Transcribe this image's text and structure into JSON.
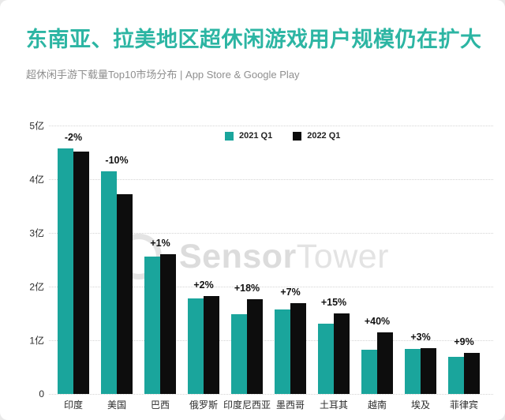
{
  "header": {
    "title": "东南亚、拉美地区超休闲游戏用户规模仍在扩大",
    "subtitle": "超休闲手游下载量Top10市场分布 | App Store & Google Play"
  },
  "watermark": {
    "name": "SensorTower logo watermark",
    "bold_part": "Sensor",
    "light_part": "Tower"
  },
  "colors": {
    "title_teal": "#2cb5a3",
    "bar_teal": "#1aa59c",
    "bar_black": "#0d0d0d",
    "grid_gray": "#d4d4d4",
    "subtitle_gray": "#8f8f8f"
  },
  "chart_data": {
    "type": "bar",
    "title": "超休闲手游下载量Top10市场分布 | App Store & Google Play",
    "unit": "亿 (hundred million downloads)",
    "categories": [
      "印度",
      "美国",
      "巴西",
      "俄罗斯",
      "印度尼西亚",
      "墨西哥",
      "土耳其",
      "越南",
      "埃及",
      "菲律宾"
    ],
    "series": [
      {
        "name": "2021 Q1",
        "color": "#1aa59c",
        "values": [
          4.57,
          4.15,
          2.56,
          1.78,
          1.49,
          1.57,
          1.31,
          0.82,
          0.84,
          0.69
        ]
      },
      {
        "name": "2022 Q1",
        "color": "#0d0d0d",
        "values": [
          4.51,
          3.72,
          2.61,
          1.82,
          1.76,
          1.69,
          1.5,
          1.15,
          0.86,
          0.76
        ]
      }
    ],
    "change_labels": [
      "-2%",
      "-10%",
      "+1%",
      "+2%",
      "+18%",
      "+7%",
      "+15%",
      "+40%",
      "+3%",
      "+9%"
    ],
    "y_ticks": [
      "0",
      "1亿",
      "2亿",
      "3亿",
      "4亿",
      "5亿"
    ],
    "ylim": [
      0,
      5
    ],
    "xlabel": "",
    "ylabel": "",
    "grid": "horizontal dotted",
    "legend_position": "top-center"
  }
}
